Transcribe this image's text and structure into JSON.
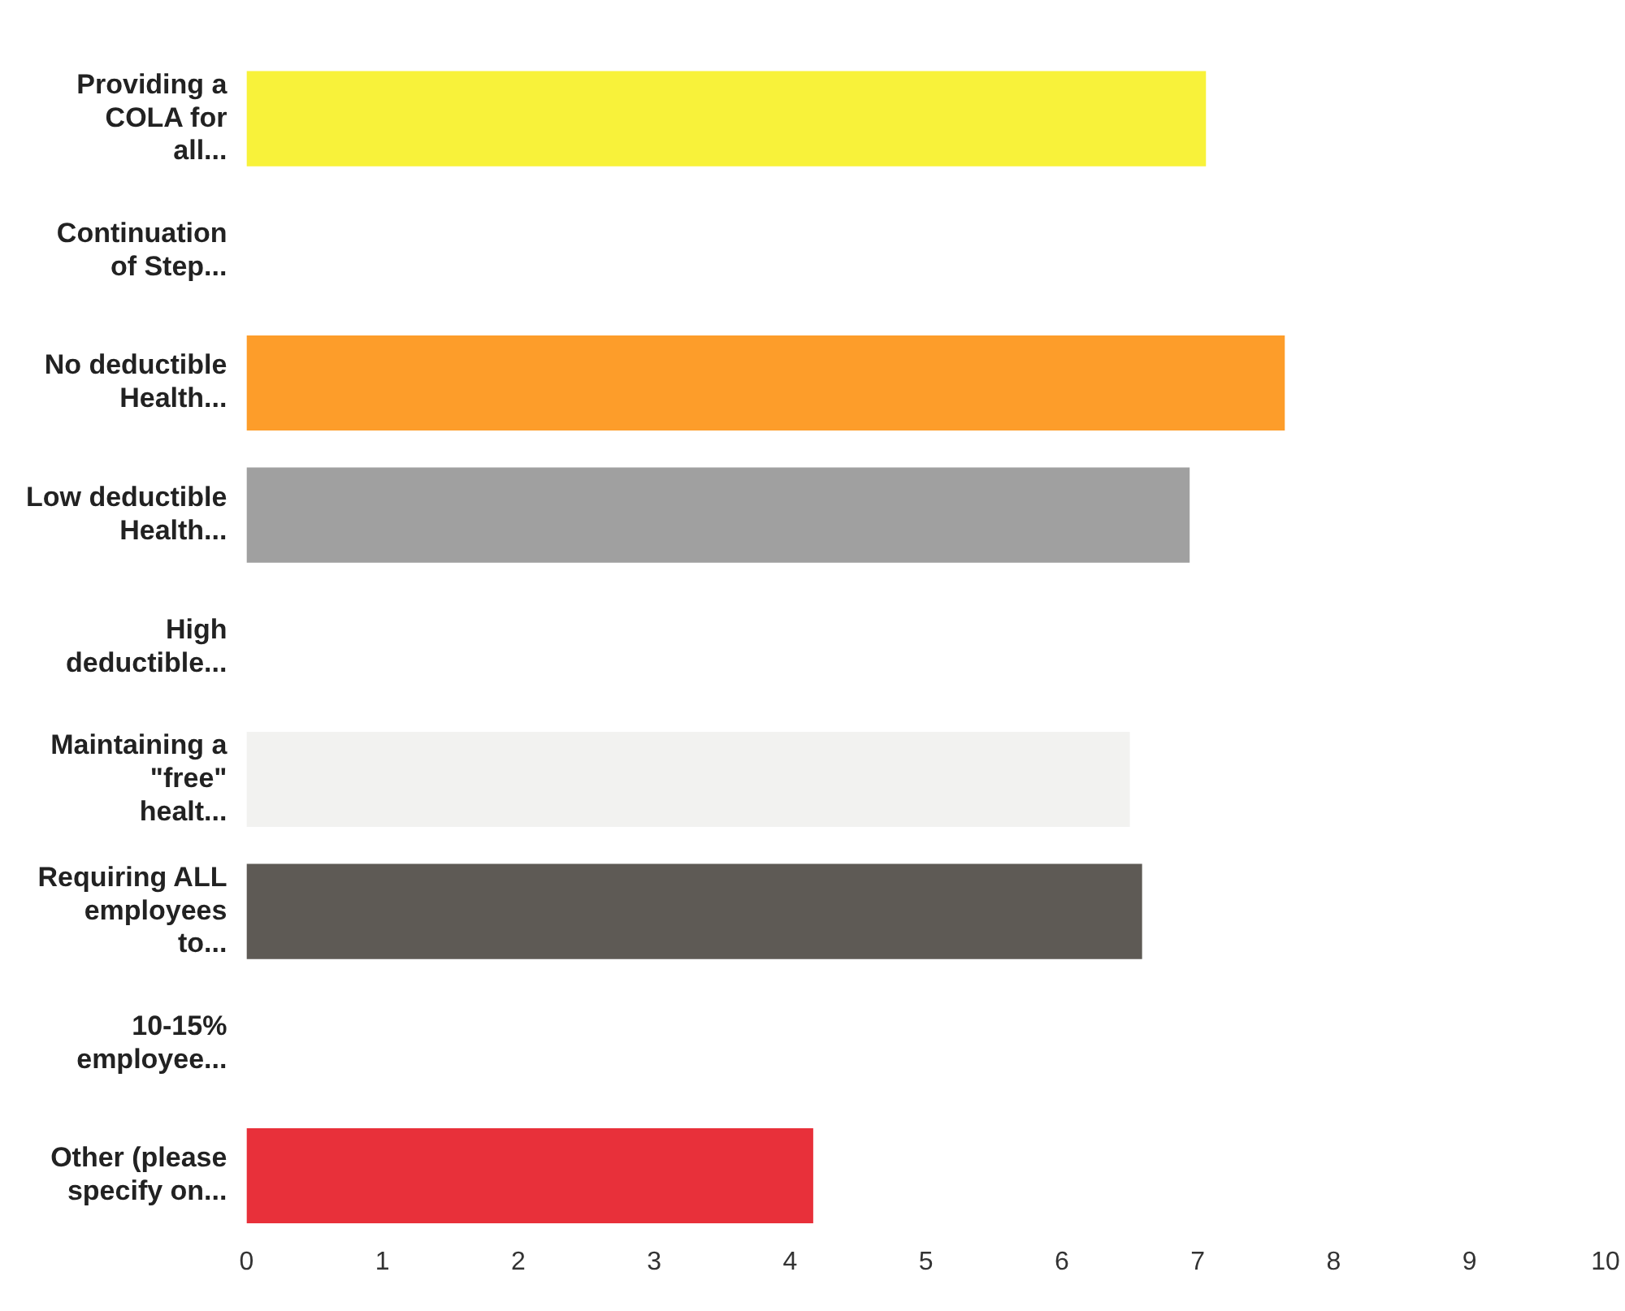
{
  "chart_data": {
    "type": "bar",
    "orientation": "horizontal",
    "categories": [
      "Providing a COLA for all...",
      "Continuation of Step...",
      "No deductible Health...",
      "Low deductible Health...",
      "High deductible...",
      "Maintaining a \"free\" healt...",
      "Requiring ALL employees to...",
      "10-15% employee...",
      "Other (please specify on..."
    ],
    "values": [
      7.06,
      null,
      7.64,
      6.94,
      null,
      6.5,
      6.59,
      null,
      4.17
    ],
    "colors": [
      "#f8f23a",
      "#ffffff",
      "#fd9d2a",
      "#a0a0a0",
      "#ffffff",
      "#f2f2f0",
      "#5e5a55",
      "#ffffff",
      "#e8303a"
    ],
    "xlim": [
      0,
      10
    ],
    "xticks": [
      0,
      1,
      2,
      3,
      4,
      5,
      6,
      7,
      8,
      9,
      10
    ],
    "grid": false,
    "legend": false
  }
}
